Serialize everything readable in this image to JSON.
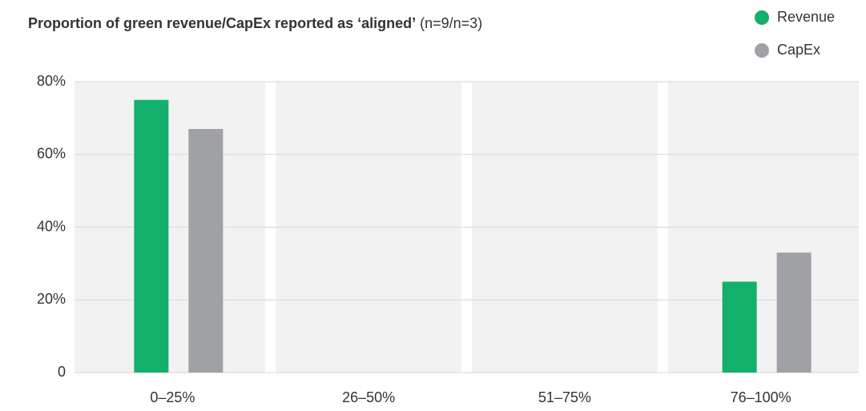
{
  "chart_data": {
    "type": "bar",
    "title": "Proportion of green revenue/CapEx reported as ‘aligned’",
    "subtitle": "(n=9/n=3)",
    "categories": [
      "0–25%",
      "26–50%",
      "51–75%",
      "76–100%"
    ],
    "series": [
      {
        "name": "Revenue",
        "color": "#12b06b",
        "values": [
          75,
          0,
          0,
          25
        ]
      },
      {
        "name": "CapEx",
        "color": "#a0a1a5",
        "values": [
          67,
          0,
          0,
          33
        ]
      }
    ],
    "ylim": [
      0,
      80
    ],
    "yticks": [
      0,
      {
        "value": 20,
        "label": "20%"
      },
      {
        "value": 40,
        "label": "40%"
      },
      {
        "value": 60,
        "label": "60%"
      },
      {
        "value": 80,
        "label": "80%"
      }
    ],
    "grid": true,
    "legend": "top-right"
  }
}
